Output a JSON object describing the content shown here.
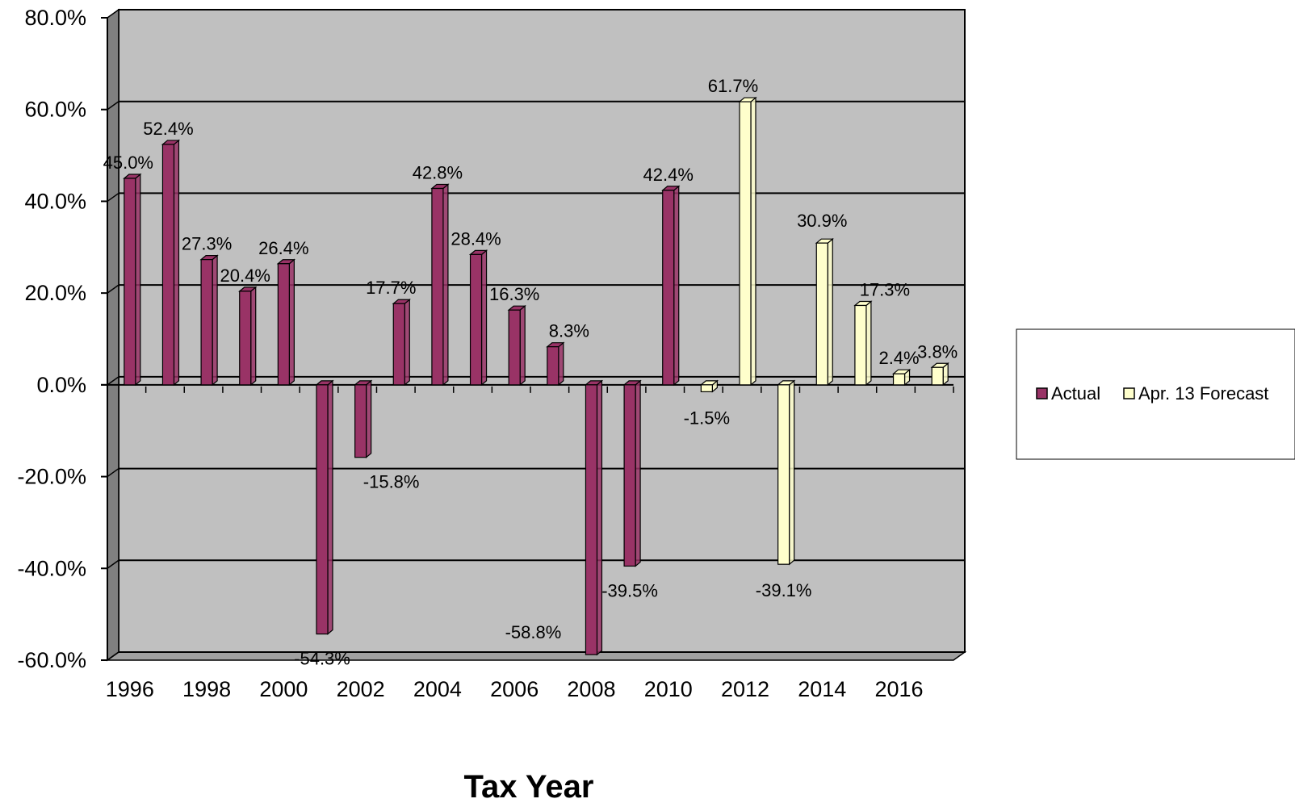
{
  "chart_data": {
    "type": "bar",
    "title": "",
    "xlabel": "Tax Year",
    "ylabel": "",
    "ylim": [
      -60,
      80
    ],
    "yticks": [
      "80.0%",
      "60.0%",
      "40.0%",
      "20.0%",
      "0.0%",
      "-20.0%",
      "-40.0%",
      "-60.0%"
    ],
    "ytick_values": [
      80,
      60,
      40,
      20,
      0,
      -20,
      -40,
      -60
    ],
    "xticks": [
      "1996",
      "1998",
      "2000",
      "2002",
      "2004",
      "2006",
      "2008",
      "2010",
      "2012",
      "2014",
      "2016"
    ],
    "categories": [
      "1996",
      "1997",
      "1998",
      "1999",
      "2000",
      "2001",
      "2002",
      "2003",
      "2004",
      "2005",
      "2006",
      "2007",
      "2008",
      "2009",
      "2010",
      "2011",
      "2012",
      "2013",
      "2014",
      "2015",
      "2016",
      "2017"
    ],
    "series": [
      {
        "name": "Actual",
        "color": "#993366",
        "values": [
          45.0,
          52.4,
          27.3,
          20.4,
          26.4,
          -54.3,
          -15.8,
          17.7,
          42.8,
          28.4,
          16.3,
          8.3,
          -58.8,
          -39.5,
          42.4,
          null,
          null,
          null,
          null,
          null,
          null,
          null
        ],
        "labels": [
          "45.0%",
          "52.4%",
          "27.3%",
          "20.4%",
          "26.4%",
          "-54.3%",
          "-15.8%",
          "17.7%",
          "42.8%",
          "28.4%",
          "16.3%",
          "8.3%",
          "-58.8%",
          "-39.5%",
          "42.4%",
          "",
          "",
          "",
          "",
          "",
          "",
          ""
        ]
      },
      {
        "name": "Apr. 13 Forecast",
        "color": "#ffffcc",
        "values": [
          null,
          null,
          null,
          null,
          null,
          null,
          null,
          null,
          null,
          null,
          null,
          null,
          null,
          null,
          null,
          -1.5,
          61.7,
          -39.1,
          30.9,
          17.3,
          2.4,
          3.8
        ],
        "labels": [
          "",
          "",
          "",
          "",
          "",
          "",
          "",
          "",
          "",
          "",
          "",
          "",
          "",
          "",
          "",
          "-1.5%",
          "61.7%",
          "-39.1%",
          "30.9%",
          "17.3%",
          "2.4%",
          "3.8%"
        ]
      }
    ],
    "grid": true,
    "legend": "right",
    "colors": {
      "plot_back": "#c0c0c0",
      "wall_side": "#808080",
      "floor": "#a0a0a0",
      "gridline": "#000000"
    }
  }
}
